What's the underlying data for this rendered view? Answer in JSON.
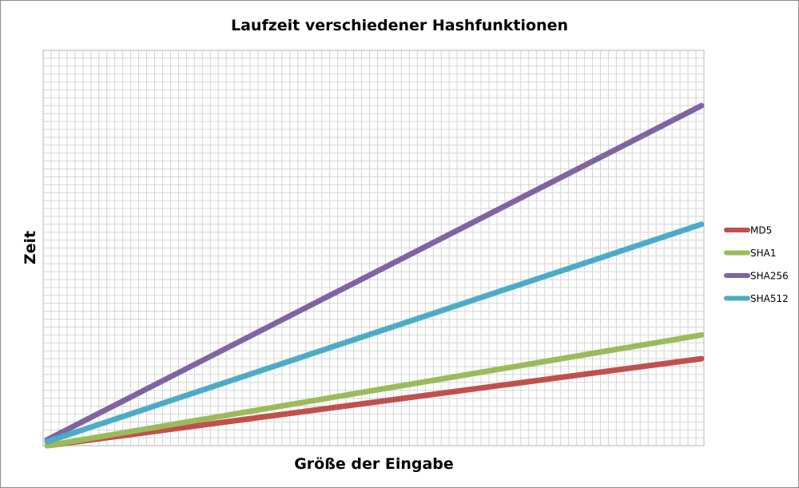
{
  "chart_data": {
    "type": "line",
    "title": "Laufzeit verschiedener Hashfunktionen",
    "xlabel": "Größe der Eingabe",
    "ylabel": "Zeit",
    "xlim": [
      0,
      1
    ],
    "ylim": [
      0,
      1
    ],
    "grid": true,
    "legend": "right",
    "x": [
      0,
      1
    ],
    "series": [
      {
        "name": "MD5",
        "color": "#c0504d",
        "values": [
          0,
          0.22
        ]
      },
      {
        "name": "SHA1",
        "color": "#9bbb59",
        "values": [
          0,
          0.28
        ]
      },
      {
        "name": "SHA256",
        "color": "#8064a2",
        "values": [
          0.015,
          0.86
        ]
      },
      {
        "name": "SHA512",
        "color": "#4bacc6",
        "values": [
          0.01,
          0.56
        ]
      }
    ]
  }
}
